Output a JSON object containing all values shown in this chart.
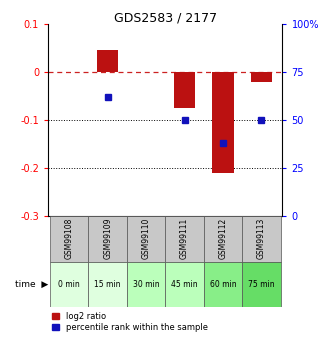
{
  "title": "GDS2583 / 2177",
  "samples": [
    "GSM99108",
    "GSM99109",
    "GSM99110",
    "GSM99111",
    "GSM99112",
    "GSM99113"
  ],
  "time_labels": [
    "0 min",
    "15 min",
    "30 min",
    "45 min",
    "60 min",
    "75 min"
  ],
  "time_colors": [
    "#dfffdf",
    "#dfffdf",
    "#bbffbb",
    "#bbffbb",
    "#88ee88",
    "#66dd66"
  ],
  "log2_ratio": [
    0.0,
    0.045,
    0.0,
    -0.075,
    -0.21,
    -0.02
  ],
  "percentile_rank": [
    null,
    62,
    null,
    50,
    38,
    50
  ],
  "ylim_left": [
    -0.3,
    0.1
  ],
  "ylim_right": [
    0,
    100
  ],
  "bar_color": "#bb1111",
  "dot_color": "#1111bb",
  "yticks_left": [
    0.1,
    0.0,
    -0.1,
    -0.2,
    -0.3
  ],
  "yticks_right": [
    100,
    75,
    50,
    25,
    0
  ],
  "bar_width": 0.55,
  "legend_red_label": "log2 ratio",
  "legend_blue_label": "percentile rank within the sample",
  "gray_color": "#c8c8c8"
}
